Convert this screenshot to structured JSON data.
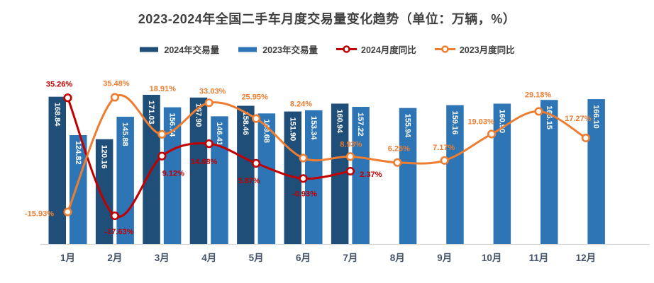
{
  "header": {
    "title": "2023-2024年全国二手车月度交易量变化趋势（单位：万辆，%）"
  },
  "legend": {
    "items": [
      {
        "label": "2024年交易量",
        "marker": "bar",
        "color": "#1F4E79"
      },
      {
        "label": "2023年交易量",
        "marker": "bar",
        "color": "#2E75B6"
      },
      {
        "label": "2024月度同比",
        "marker": "line-circle",
        "color": "#C00000"
      },
      {
        "label": "2023月度同比",
        "marker": "line-circle",
        "color": "#ED7D31"
      }
    ]
  },
  "chart_data": {
    "type": "combo-bar-line",
    "title": "2023-2024年全国二手车月度交易量变化趋势（单位：万辆，%）",
    "categories": [
      "1月",
      "2月",
      "3月",
      "4月",
      "5月",
      "6月",
      "7月",
      "8月",
      "9月",
      "10月",
      "11月",
      "12月"
    ],
    "series": [
      {
        "name": "2024年交易量",
        "type": "bar",
        "axis": "volume",
        "color": "#1F4E79",
        "label_color": "#FFFFFF",
        "values": [
          168.84,
          120.16,
          171.03,
          167.9,
          158.46,
          151.9,
          160.94,
          null,
          null,
          null,
          null,
          null
        ]
      },
      {
        "name": "2023年交易量",
        "type": "bar",
        "axis": "volume",
        "color": "#2E75B6",
        "label_color": "#FFFFFF",
        "values": [
          124.82,
          145.88,
          156.74,
          146.41,
          149.68,
          153.34,
          157.22,
          155.94,
          159.16,
          160.9,
          165.15,
          166.1
        ]
      },
      {
        "name": "2024月度同比",
        "type": "line",
        "axis": "percent",
        "color": "#C00000",
        "values": [
          35.26,
          -17.63,
          9.12,
          14.68,
          5.87,
          -0.93,
          2.37,
          null,
          null,
          null,
          null,
          null
        ]
      },
      {
        "name": "2023月度同比",
        "type": "line",
        "axis": "percent",
        "color": "#ED7D31",
        "values": [
          -15.93,
          35.48,
          18.91,
          33.03,
          25.95,
          8.24,
          8.93,
          6.25,
          7.17,
          19.03,
          29.18,
          17.27
        ]
      }
    ],
    "xlabel": "",
    "ylabel": "",
    "value_axis": {
      "unit": "万辆",
      "min": 0,
      "max": 180,
      "shown": false
    },
    "percent_axis": {
      "unit": "%",
      "min": -25,
      "max": 40,
      "shown": false
    },
    "grid": false,
    "legend_position": "top",
    "axis_line_color": "#D9D9D9",
    "category_label_color": "#44546A",
    "number_format": {
      "bar_labels": "0.00",
      "line_labels": "0.00%"
    }
  }
}
